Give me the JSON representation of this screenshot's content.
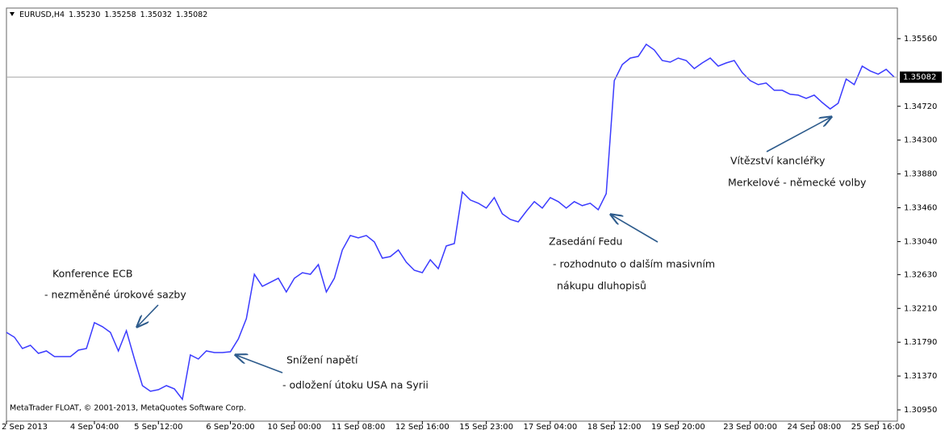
{
  "chart_data": {
    "type": "line",
    "symbol": "EURUSD,H4",
    "ohlc": [
      "1.35230",
      "1.35258",
      "1.35032",
      "1.35082"
    ],
    "footer": "MetaTrader FLOAT, © 2001-2013, MetaQuotes Software Corp.",
    "color": "#3b3bff",
    "ylim": [
      1.3081,
      1.3594
    ],
    "yticks": [
      {
        "value": 1.3095,
        "label": "1.30950"
      },
      {
        "value": 1.3137,
        "label": "1.31370"
      },
      {
        "value": 1.3179,
        "label": "1.31790"
      },
      {
        "value": 1.3221,
        "label": "1.32210"
      },
      {
        "value": 1.3263,
        "label": "1.32630"
      },
      {
        "value": 1.3304,
        "label": "1.33040"
      },
      {
        "value": 1.3346,
        "label": "1.33460"
      },
      {
        "value": 1.3388,
        "label": "1.33880"
      },
      {
        "value": 1.343,
        "label": "1.34300"
      },
      {
        "value": 1.3472,
        "label": "1.34720"
      },
      {
        "value": 1.3556,
        "label": "1.35560"
      }
    ],
    "current_price": {
      "value": 1.35082,
      "label": "1.35082"
    },
    "xticks": [
      {
        "value": 0,
        "label": "2 Sep 2013"
      },
      {
        "value": 11,
        "label": "4 Sep 04:00"
      },
      {
        "value": 19,
        "label": "5 Sep 12:00"
      },
      {
        "value": 28,
        "label": "6 Sep 20:00"
      },
      {
        "value": 36,
        "label": "10 Sep 00:00"
      },
      {
        "value": 44,
        "label": "11 Sep 08:00"
      },
      {
        "value": 52,
        "label": "12 Sep 16:00"
      },
      {
        "value": 60,
        "label": "15 Sep 23:00"
      },
      {
        "value": 68,
        "label": "17 Sep 04:00"
      },
      {
        "value": 76,
        "label": "18 Sep 12:00"
      },
      {
        "value": 84,
        "label": "19 Sep 20:00"
      },
      {
        "value": 93,
        "label": "23 Sep 00:00"
      },
      {
        "value": 101,
        "label": "24 Sep 08:00"
      },
      {
        "value": 109,
        "label": "25 Sep 16:00"
      }
    ],
    "values": [
      1.31912,
      1.31852,
      1.31712,
      1.31752,
      1.31652,
      1.31682,
      1.31612,
      1.31612,
      1.31612,
      1.31692,
      1.31712,
      1.32033,
      1.31983,
      1.31912,
      1.31682,
      1.31933,
      1.31582,
      1.31251,
      1.31181,
      1.31201,
      1.31251,
      1.31211,
      1.31081,
      1.31632,
      1.31582,
      1.31682,
      1.31662,
      1.31662,
      1.31672,
      1.31832,
      1.32083,
      1.32634,
      1.32484,
      1.32534,
      1.32584,
      1.32414,
      1.32584,
      1.32654,
      1.32634,
      1.32754,
      1.32414,
      1.32584,
      1.32935,
      1.33115,
      1.33085,
      1.33115,
      1.33035,
      1.32834,
      1.32854,
      1.32935,
      1.32784,
      1.32684,
      1.32654,
      1.32814,
      1.32704,
      1.32985,
      1.33015,
      1.33656,
      1.33556,
      1.33516,
      1.33456,
      1.33586,
      1.33385,
      1.33315,
      1.33285,
      1.33415,
      1.33536,
      1.33456,
      1.33586,
      1.33536,
      1.33456,
      1.33536,
      1.33486,
      1.33516,
      1.33435,
      1.33636,
      1.35039,
      1.35239,
      1.35319,
      1.3534,
      1.3549,
      1.3542,
      1.35289,
      1.35269,
      1.35319,
      1.35289,
      1.35189,
      1.35259,
      1.35319,
      1.35219,
      1.35259,
      1.35289,
      1.35139,
      1.35039,
      1.34989,
      1.35009,
      1.34919,
      1.34919,
      1.34869,
      1.34859,
      1.34819,
      1.34859,
      1.34768,
      1.34688,
      1.34758,
      1.35059,
      1.34989,
      1.35219,
      1.35159,
      1.35119,
      1.35179,
      1.35082
    ],
    "annotations": [
      [
        "Konference ECB",
        "- nezměněné úrokové sazby"
      ],
      [
        "Snížení napětí",
        "- odložení útoku USA na Syrii"
      ],
      [
        "Zasedání Fedu",
        "- rozhodnuto o dalším masivním",
        "nákupu dluhopisů"
      ],
      [
        "Vítězství kancléřky",
        "Merkelové - německé volby"
      ]
    ]
  }
}
